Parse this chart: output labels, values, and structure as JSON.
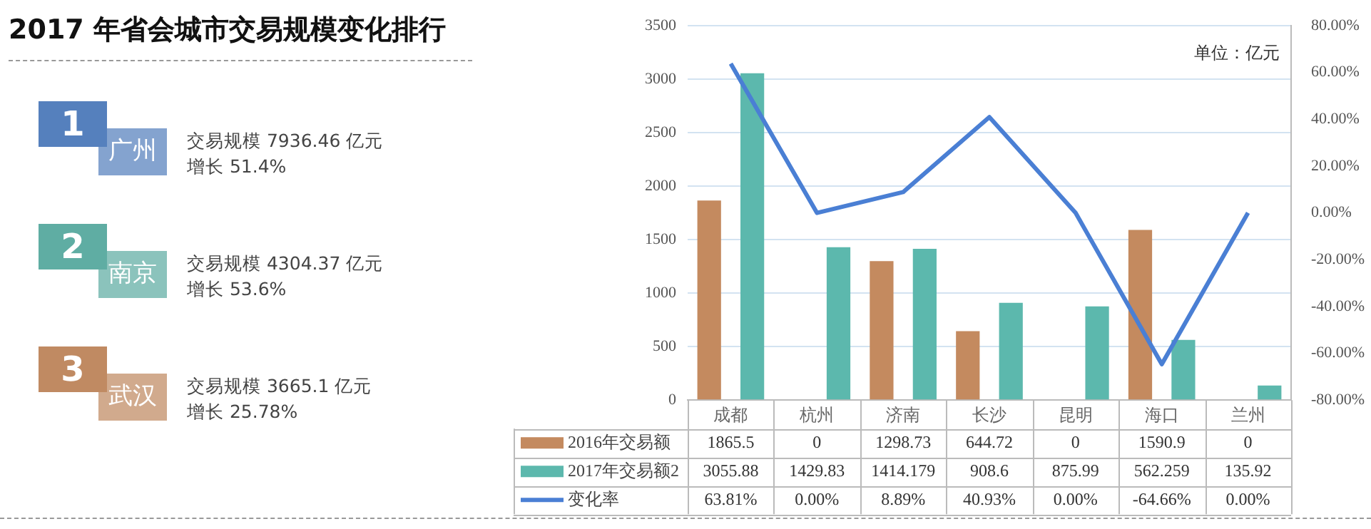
{
  "chart_data": [
    {
      "type": "other",
      "title": "2017 年省会城市交易规模变化排行",
      "colors": [
        "#5580bd",
        "#5fada3",
        "#c08a62"
      ],
      "annotations": [
        "1",
        "广州",
        "交易规模 7936.46 亿元",
        "增长 51.4%",
        "2",
        "南京",
        "交易规模 4304.37 亿元",
        "增长 53.6%",
        "3",
        "武汉",
        "交易规模 3665.1 亿元",
        "增长 25.78%"
      ]
    },
    {
      "type": "bar",
      "categories": [
        "成都",
        "杭州",
        "济南",
        "长沙",
        "昆明",
        "海口",
        "兰州"
      ],
      "series": [
        {
          "name": "2016年交易额",
          "color": "#c48a5f",
          "values": [
            1865.5,
            0,
            1298.73,
            644.72,
            0,
            1590.9,
            0
          ]
        },
        {
          "name": "2017年交易额2",
          "color": "#5cb8ad",
          "values": [
            3055.88,
            1429.83,
            1414.179,
            908.6,
            875.99,
            562.259,
            135.92
          ]
        },
        {
          "name": "变化率",
          "type": "line",
          "axis": "y2",
          "color": "#4a7fd4",
          "values": [
            63.81,
            0,
            8.89,
            40.93,
            0,
            -64.66,
            0
          ],
          "value_labels": [
            "63.81%",
            "0.00%",
            "8.89%",
            "40.93%",
            "0.00%",
            "-64.66%",
            "0.00%"
          ]
        }
      ],
      "ylim": [
        0,
        3500
      ],
      "yticks": [
        0,
        500,
        1000,
        1500,
        2000,
        2500,
        3000,
        3500
      ],
      "y2lim": [
        -80,
        80
      ],
      "y2ticks": [
        {
          "value": -80,
          "label": "-80.00%"
        },
        {
          "value": -60,
          "label": "-60.00%"
        },
        {
          "value": -40,
          "label": "-40.00%"
        },
        {
          "value": -20,
          "label": "-20.00%"
        },
        {
          "value": 0,
          "label": "0.00%"
        },
        {
          "value": 20,
          "label": "20.00%"
        },
        {
          "value": 40,
          "label": "40.00%"
        },
        {
          "value": 60,
          "label": "60.00%"
        },
        {
          "value": 80,
          "label": "80.00%"
        }
      ],
      "grid": "y",
      "legend": "bottom",
      "data_labels": true,
      "marker": "none",
      "annotations": [
        "单位：亿元"
      ]
    }
  ]
}
